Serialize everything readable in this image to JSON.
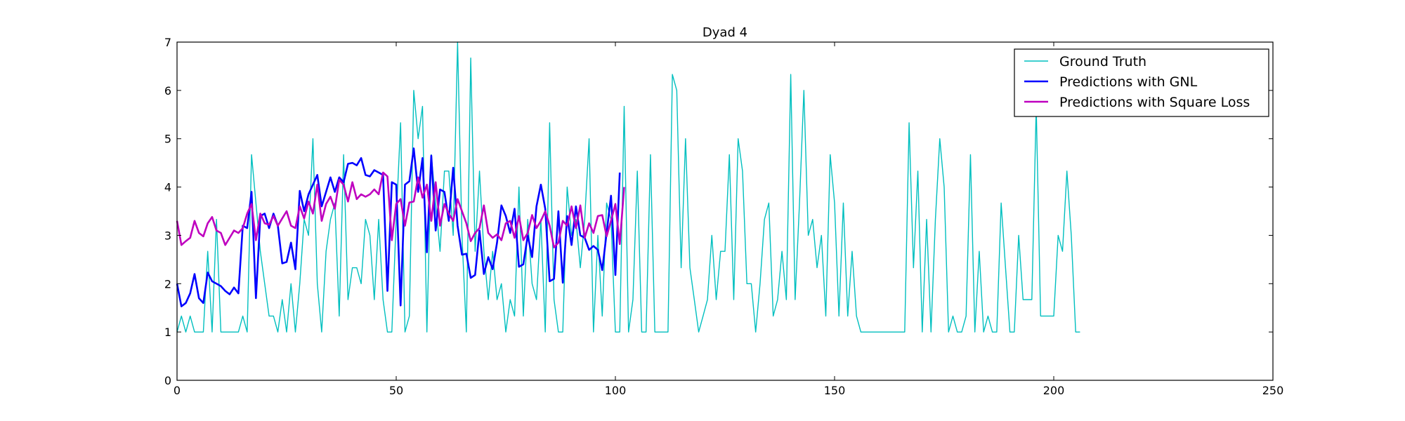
{
  "chart_data": {
    "type": "line",
    "title": "Dyad 4",
    "xlabel": "",
    "ylabel": "",
    "xlim": [
      0,
      250
    ],
    "ylim": [
      0,
      7
    ],
    "xticks": [
      0,
      50,
      100,
      150,
      200,
      250
    ],
    "yticks": [
      0,
      1,
      2,
      3,
      4,
      5,
      6,
      7
    ],
    "grid": false,
    "legend_position": "top-right",
    "series": [
      {
        "name": "Ground Truth",
        "color": "#00bfbf",
        "values": [
          1.0,
          1.33,
          1.0,
          1.33,
          1.0,
          1.0,
          1.0,
          2.67,
          1.0,
          3.33,
          1.0,
          1.0,
          1.0,
          1.0,
          1.0,
          1.33,
          1.0,
          4.67,
          3.67,
          2.67,
          2.0,
          1.33,
          1.33,
          1.0,
          1.67,
          1.0,
          2.0,
          1.0,
          2.0,
          3.33,
          3.0,
          5.0,
          2.0,
          1.0,
          2.67,
          3.33,
          3.67,
          1.33,
          4.67,
          1.67,
          2.33,
          2.33,
          2.0,
          3.33,
          3.0,
          1.67,
          3.33,
          1.67,
          1.0,
          1.0,
          3.33,
          5.33,
          1.0,
          1.33,
          6.0,
          5.0,
          5.67,
          1.0,
          4.67,
          3.67,
          2.67,
          4.33,
          4.33,
          3.0,
          7.0,
          3.0,
          1.0,
          6.67,
          2.67,
          4.33,
          2.67,
          1.67,
          2.67,
          1.67,
          2.0,
          1.0,
          1.67,
          1.33,
          4.0,
          1.33,
          3.33,
          2.0,
          1.67,
          3.33,
          1.0,
          5.33,
          1.67,
          1.0,
          1.0,
          4.0,
          3.0,
          3.33,
          2.33,
          3.33,
          5.0,
          1.0,
          3.0,
          1.33,
          3.67,
          3.33,
          1.0,
          1.0,
          5.67,
          1.0,
          1.67,
          4.33,
          1.0,
          1.0,
          4.67,
          1.0,
          1.0,
          1.0,
          1.0,
          6.33,
          6.0,
          2.33,
          5.0,
          2.33,
          1.67,
          1.0,
          1.33,
          1.67,
          3.0,
          1.67,
          2.67,
          2.67,
          4.67,
          1.67,
          5.0,
          4.33,
          2.0,
          2.0,
          1.0,
          2.0,
          3.33,
          3.67,
          1.33,
          1.67,
          2.67,
          1.67,
          6.33,
          1.67,
          3.67,
          6.0,
          3.0,
          3.33,
          2.33,
          3.0,
          1.33,
          4.67,
          3.67,
          1.33,
          3.67,
          1.33,
          2.67,
          1.33,
          1.0,
          1.0,
          1.0,
          1.0,
          1.0,
          1.0,
          1.0,
          1.0,
          1.0,
          1.0,
          1.0,
          5.33,
          2.33,
          4.33,
          1.0,
          3.33,
          1.0,
          3.33,
          5.0,
          4.0,
          1.0,
          1.33,
          1.0,
          1.0,
          1.33,
          4.67,
          1.0,
          2.67,
          1.0,
          1.33,
          1.0,
          1.0,
          3.67,
          2.33,
          1.0,
          1.0,
          3.0,
          1.67,
          1.67,
          1.67,
          5.67,
          1.33,
          1.33,
          1.33,
          1.33,
          3.0,
          2.67,
          4.33,
          3.0,
          1.0,
          1.0
        ]
      },
      {
        "name": "Predictions with GNL",
        "color": "#0000ff",
        "values": [
          2.0,
          1.53,
          1.6,
          1.8,
          2.2,
          1.7,
          1.6,
          2.23,
          2.05,
          2.0,
          1.95,
          1.85,
          1.78,
          1.92,
          1.8,
          3.2,
          3.15,
          3.9,
          1.7,
          3.4,
          3.45,
          3.15,
          3.45,
          3.2,
          2.42,
          2.45,
          2.85,
          2.3,
          3.92,
          3.5,
          3.85,
          4.05,
          4.25,
          3.6,
          3.9,
          4.2,
          3.9,
          4.2,
          4.1,
          4.48,
          4.5,
          4.45,
          4.6,
          4.25,
          4.22,
          4.35,
          4.3,
          4.25,
          1.85,
          4.1,
          4.05,
          1.55,
          4.05,
          4.12,
          4.8,
          3.9,
          4.6,
          2.65,
          4.65,
          3.1,
          3.95,
          3.9,
          3.3,
          4.4,
          3.2,
          2.6,
          2.62,
          2.12,
          2.18,
          3.1,
          2.2,
          2.55,
          2.3,
          2.85,
          3.62,
          3.4,
          3.05,
          3.55,
          2.35,
          2.4,
          3.0,
          2.55,
          3.6,
          4.05,
          3.55,
          2.05,
          2.1,
          3.5,
          2.02,
          3.4,
          2.8,
          3.6,
          3.0,
          2.95,
          2.7,
          2.78,
          2.7,
          2.28,
          3.05,
          3.82,
          2.18,
          4.3
        ]
      },
      {
        "name": "Predictions with Square Loss",
        "color": "#bf00bf",
        "values": [
          3.3,
          2.8,
          2.88,
          2.95,
          3.3,
          3.05,
          2.98,
          3.25,
          3.38,
          3.1,
          3.05,
          2.8,
          2.95,
          3.1,
          3.05,
          3.15,
          3.45,
          3.65,
          2.9,
          3.45,
          3.25,
          3.22,
          3.4,
          3.2,
          3.35,
          3.5,
          3.2,
          3.15,
          3.6,
          3.35,
          3.7,
          3.45,
          4.05,
          3.3,
          3.65,
          3.8,
          3.55,
          4.15,
          4.05,
          3.7,
          4.1,
          3.75,
          3.85,
          3.8,
          3.85,
          3.95,
          3.85,
          4.3,
          4.22,
          2.9,
          3.65,
          3.75,
          3.2,
          3.68,
          3.7,
          4.2,
          3.78,
          4.05,
          3.3,
          4.1,
          3.2,
          3.65,
          3.45,
          3.3,
          3.75,
          3.5,
          3.25,
          2.88,
          3.05,
          3.15,
          3.62,
          3.05,
          2.95,
          3.02,
          2.9,
          3.25,
          3.3,
          2.95,
          3.4,
          2.9,
          3.05,
          3.42,
          3.15,
          3.3,
          3.5,
          3.2,
          2.75,
          2.85,
          3.3,
          3.2,
          3.6,
          3.15,
          3.62,
          2.95,
          3.25,
          3.05,
          3.4,
          3.42,
          2.98,
          3.3,
          3.65,
          2.82,
          4.0
        ]
      }
    ]
  }
}
